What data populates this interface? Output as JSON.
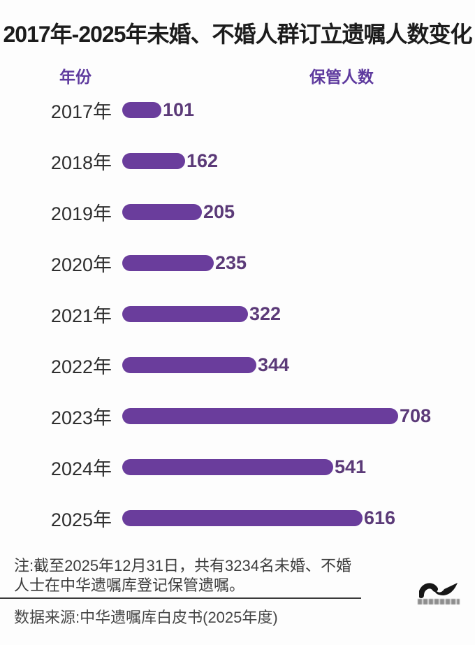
{
  "headers": {
    "year": "年份",
    "count": "保管人数"
  },
  "chart_data": {
    "type": "bar",
    "orientation": "horizontal",
    "title": "2017年-2025年未婚、不婚人群订立遗嘱人数变化",
    "categories": [
      "2017年",
      "2018年",
      "2019年",
      "2020年",
      "2021年",
      "2022年",
      "2023年",
      "2024年",
      "2025年"
    ],
    "values": [
      101,
      162,
      205,
      235,
      322,
      344,
      708,
      541,
      616
    ],
    "series_label": "保管人数",
    "xlabel": "保管人数",
    "ylabel": "年份",
    "xlim": [
      0,
      708
    ],
    "grid": false,
    "value_labels_shown": true,
    "bar_color": "#6a3d9c",
    "value_label_color": "#5b3a78",
    "header_color": "#5e3a9e",
    "title_color": "#1c1c1c"
  },
  "note": {
    "line1": "注:截至2025年12月31日，共有3234名未婚、不婚",
    "line2": "人士在中华遗嘱库登记保管遗嘱。"
  },
  "source": "数据来源:中华遗嘱库白皮书(2025年度)",
  "logo": {
    "icon": "wave-logo"
  }
}
